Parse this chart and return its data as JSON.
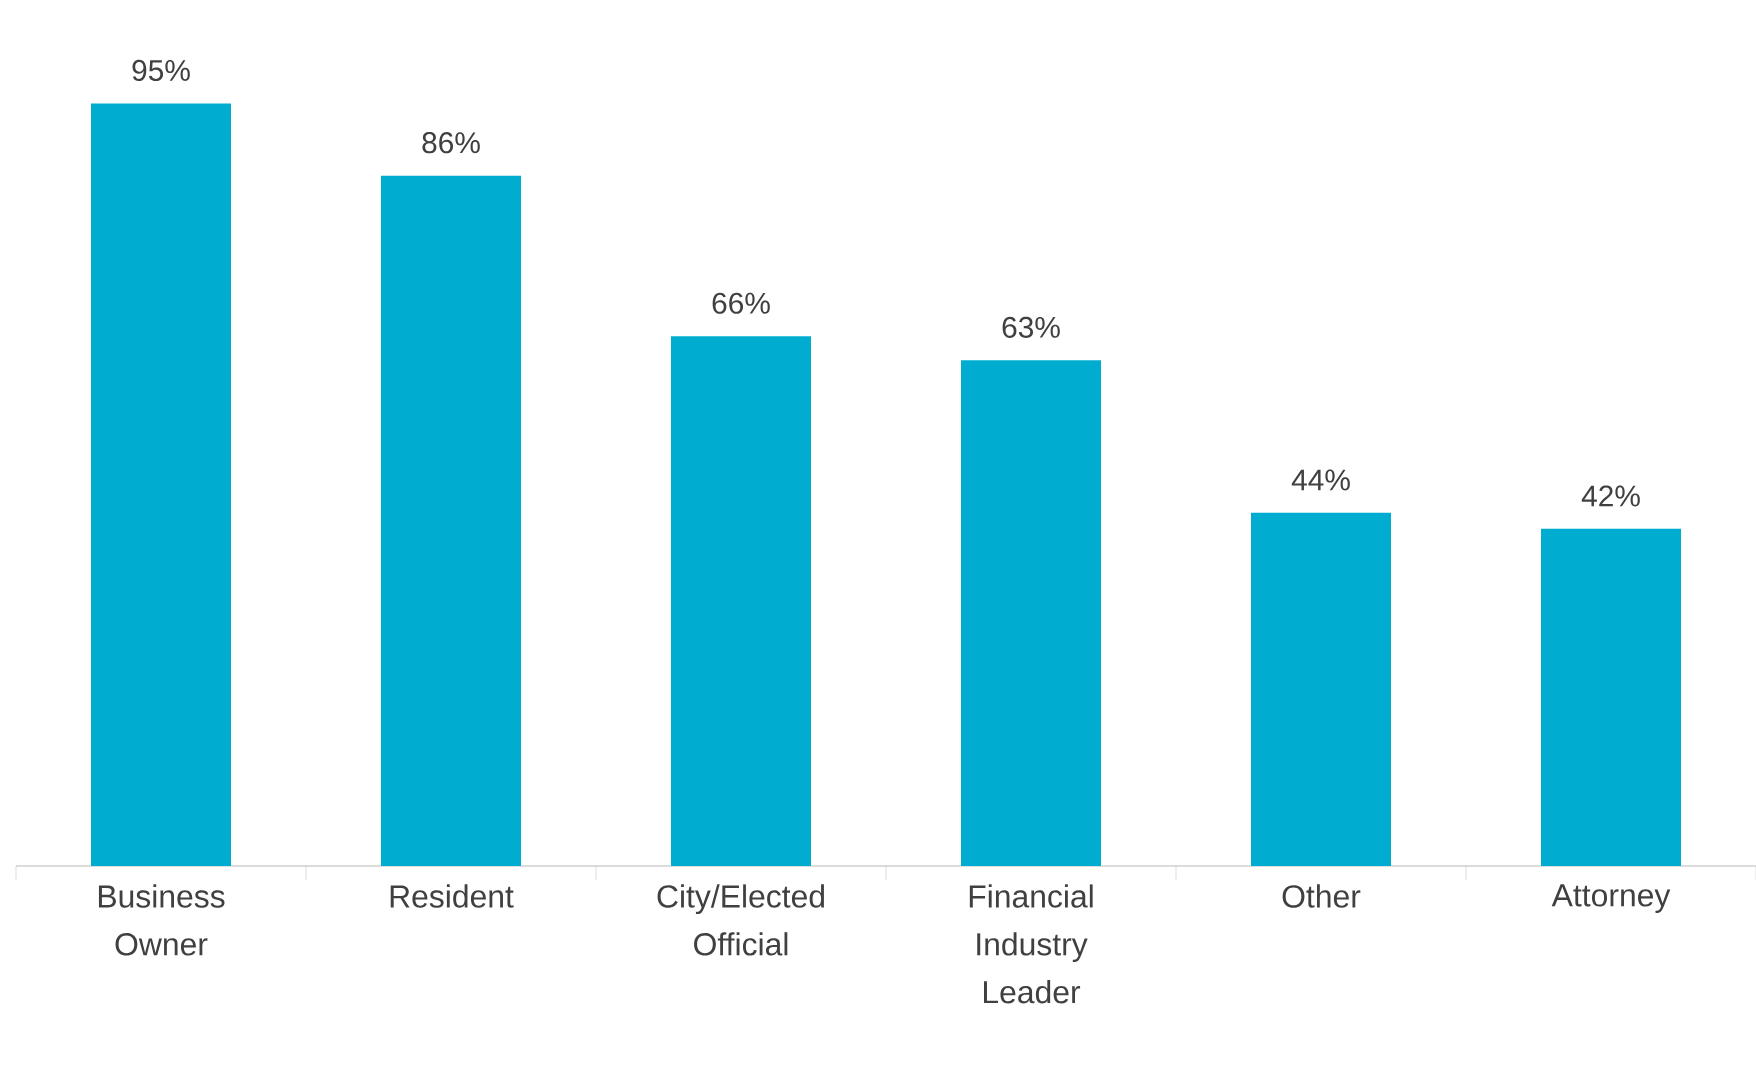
{
  "chart_data": {
    "type": "bar",
    "categories": [
      "Business Owner",
      "Resident",
      "City/Elected Official",
      "Financial Industry Leader",
      "Other",
      "Attorney"
    ],
    "values": [
      95,
      86,
      66,
      63,
      44,
      42
    ],
    "value_labels": [
      "95%",
      "86%",
      "66%",
      "63%",
      "44%",
      "42%"
    ],
    "color": "#00acd0"
  }
}
